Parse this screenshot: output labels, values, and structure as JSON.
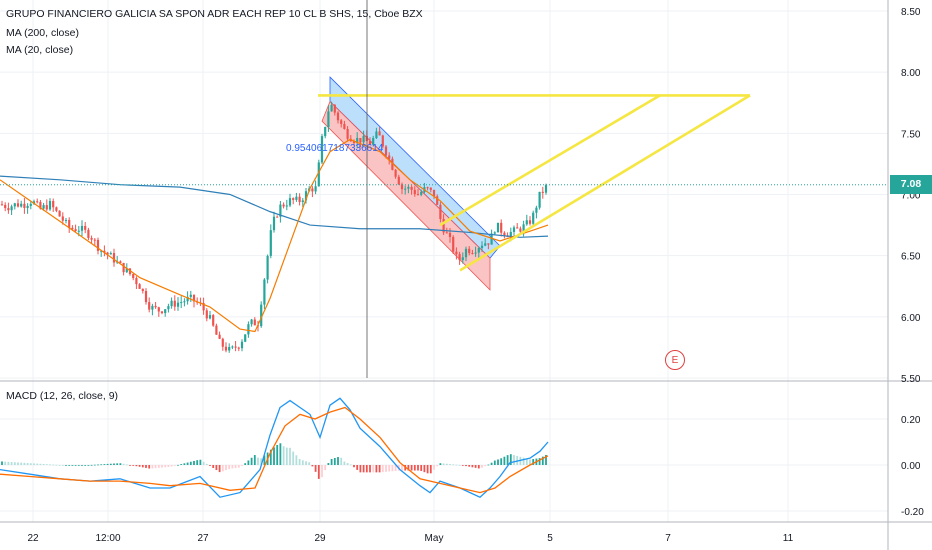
{
  "legend": {
    "title": "GRUPO FINANCIERO GALICIA SA SPON ADR EACH REP 10 CL B SHS, 15, Cboe BZX",
    "ma200": "MA (200, close)",
    "ma20": "MA (20, close)",
    "macd": "MACD (12, 26, close, 9)"
  },
  "last_price_label": "7.08",
  "earnings_marker": "E",
  "channel_label": "0.9540617187336614",
  "colors": {
    "up": "#26a69a",
    "down": "#ef5350",
    "ma200": "#2f7fb8",
    "ma20": "#f57c00",
    "macd_line": "#2196f3",
    "signal_line": "#ff6d00",
    "channel_upper_fill": "#90caf9",
    "channel_lower_fill": "#f8a5a5",
    "pattern": "#f5e642",
    "grid": "#eef1f5"
  },
  "chart_data": [
    {
      "type": "candlestick",
      "title": "GRUPO FINANCIERO GALICIA SA SPON ADR EACH REP 10 CL B SHS, 15, Cboe BZX",
      "ylim": [
        5.5,
        8.6
      ],
      "y_ticks": [
        "5.50",
        "6.00",
        "6.50",
        "7.00",
        "7.50",
        "8.00",
        "8.50"
      ],
      "x_ticks": [
        "22",
        "12:00",
        "27",
        "29",
        "May",
        "5",
        "7",
        "11"
      ],
      "last_price": 7.08,
      "price_path": [
        [
          0,
          6.92
        ],
        [
          8,
          6.9
        ],
        [
          16,
          6.92
        ],
        [
          24,
          6.92
        ],
        [
          32,
          6.95
        ],
        [
          40,
          6.88
        ],
        [
          50,
          6.92
        ],
        [
          60,
          6.82
        ],
        [
          70,
          6.72
        ],
        [
          80,
          6.72
        ],
        [
          90,
          6.67
        ],
        [
          100,
          6.55
        ],
        [
          110,
          6.5
        ],
        [
          120,
          6.42
        ],
        [
          130,
          6.35
        ],
        [
          140,
          6.25
        ],
        [
          150,
          6.08
        ],
        [
          160,
          6.05
        ],
        [
          170,
          6.1
        ],
        [
          180,
          6.12
        ],
        [
          190,
          6.15
        ],
        [
          200,
          6.1
        ],
        [
          210,
          5.98
        ],
        [
          220,
          5.78
        ],
        [
          230,
          5.72
        ],
        [
          240,
          5.78
        ],
        [
          250,
          5.95
        ],
        [
          258,
          5.95
        ],
        [
          265,
          6.35
        ],
        [
          272,
          6.75
        ],
        [
          280,
          6.9
        ],
        [
          290,
          6.95
        ],
        [
          300,
          6.95
        ],
        [
          310,
          7.05
        ],
        [
          316,
          7.05
        ],
        [
          322,
          7.45
        ],
        [
          330,
          7.75
        ],
        [
          338,
          7.62
        ],
        [
          346,
          7.5
        ],
        [
          354,
          7.45
        ],
        [
          362,
          7.45
        ],
        [
          370,
          7.42
        ],
        [
          378,
          7.5
        ],
        [
          386,
          7.35
        ],
        [
          394,
          7.2
        ],
        [
          402,
          7.05
        ],
        [
          410,
          7.05
        ],
        [
          418,
          7.0
        ],
        [
          426,
          7.05
        ],
        [
          434,
          7.0
        ],
        [
          442,
          6.75
        ],
        [
          450,
          6.62
        ],
        [
          458,
          6.45
        ],
        [
          466,
          6.55
        ],
        [
          474,
          6.55
        ],
        [
          482,
          6.6
        ],
        [
          490,
          6.62
        ],
        [
          496,
          6.75
        ],
        [
          502,
          6.7
        ],
        [
          508,
          6.68
        ],
        [
          514,
          6.7
        ],
        [
          520,
          6.72
        ],
        [
          526,
          6.75
        ],
        [
          532,
          6.8
        ],
        [
          540,
          7.0
        ],
        [
          548,
          7.08
        ]
      ],
      "ma200": [
        [
          0,
          7.15
        ],
        [
          60,
          7.12
        ],
        [
          120,
          7.08
        ],
        [
          180,
          7.06
        ],
        [
          230,
          7.0
        ],
        [
          270,
          6.86
        ],
        [
          310,
          6.75
        ],
        [
          360,
          6.72
        ],
        [
          420,
          6.72
        ],
        [
          470,
          6.69
        ],
        [
          520,
          6.65
        ],
        [
          548,
          6.66
        ]
      ],
      "ma20": [
        [
          0,
          7.12
        ],
        [
          30,
          6.95
        ],
        [
          60,
          6.78
        ],
        [
          100,
          6.55
        ],
        [
          140,
          6.32
        ],
        [
          180,
          6.18
        ],
        [
          210,
          6.08
        ],
        [
          240,
          5.9
        ],
        [
          255,
          5.88
        ],
        [
          270,
          6.15
        ],
        [
          290,
          6.6
        ],
        [
          310,
          7.05
        ],
        [
          330,
          7.35
        ],
        [
          350,
          7.45
        ],
        [
          380,
          7.35
        ],
        [
          410,
          7.12
        ],
        [
          440,
          6.95
        ],
        [
          470,
          6.7
        ],
        [
          500,
          6.62
        ],
        [
          530,
          6.7
        ],
        [
          548,
          6.75
        ]
      ],
      "channel": {
        "upper_start": [
          330,
          7.96
        ],
        "upper_end": [
          500,
          6.58
        ],
        "mid_start": [
          330,
          7.76
        ],
        "mid_end": [
          490,
          6.48
        ],
        "lower_start": [
          322,
          7.6
        ],
        "lower_end": [
          490,
          6.22
        ]
      },
      "pattern_lines": [
        [
          [
            318,
            7.81
          ],
          [
            750,
            7.81
          ]
        ],
        [
          [
            440,
            6.75
          ],
          [
            660,
            7.81
          ]
        ],
        [
          [
            460,
            6.38
          ],
          [
            750,
            7.81
          ]
        ]
      ]
    },
    {
      "type": "line",
      "title": "MACD (12, 26, close, 9)",
      "ylim": [
        -0.25,
        0.35
      ],
      "y_ticks": [
        "-0.20",
        "0.00",
        "0.20"
      ],
      "series": [
        {
          "values": [
            [
              0,
              -0.02
            ],
            [
              30,
              -0.04
            ],
            [
              60,
              -0.06
            ],
            [
              90,
              -0.07
            ],
            [
              120,
              -0.06
            ],
            [
              150,
              -0.1
            ],
            [
              170,
              -0.1
            ],
            [
              200,
              -0.05
            ],
            [
              220,
              -0.14
            ],
            [
              240,
              -0.12
            ],
            [
              260,
              -0.02
            ],
            [
              270,
              0.13
            ],
            [
              280,
              0.25
            ],
            [
              290,
              0.28
            ],
            [
              300,
              0.25
            ],
            [
              310,
              0.22
            ],
            [
              320,
              0.12
            ],
            [
              330,
              0.26
            ],
            [
              340,
              0.29
            ],
            [
              350,
              0.24
            ],
            [
              360,
              0.16
            ],
            [
              380,
              0.08
            ],
            [
              400,
              -0.02
            ],
            [
              420,
              -0.09
            ],
            [
              430,
              -0.12
            ],
            [
              440,
              -0.07
            ],
            [
              460,
              -0.1
            ],
            [
              470,
              -0.12
            ],
            [
              480,
              -0.14
            ],
            [
              490,
              -0.1
            ],
            [
              500,
              -0.05
            ],
            [
              510,
              0.01
            ],
            [
              530,
              0.03
            ],
            [
              540,
              0.06
            ],
            [
              548,
              0.1
            ]
          ]
        },
        {
          "values": [
            [
              0,
              -0.04
            ],
            [
              30,
              -0.05
            ],
            [
              60,
              -0.06
            ],
            [
              90,
              -0.07
            ],
            [
              120,
              -0.07
            ],
            [
              150,
              -0.08
            ],
            [
              170,
              -0.09
            ],
            [
              200,
              -0.08
            ],
            [
              230,
              -0.11
            ],
            [
              255,
              -0.1
            ],
            [
              270,
              0.05
            ],
            [
              285,
              0.17
            ],
            [
              300,
              0.22
            ],
            [
              315,
              0.2
            ],
            [
              330,
              0.23
            ],
            [
              345,
              0.25
            ],
            [
              360,
              0.2
            ],
            [
              380,
              0.12
            ],
            [
              400,
              0.01
            ],
            [
              420,
              -0.06
            ],
            [
              440,
              -0.08
            ],
            [
              460,
              -0.1
            ],
            [
              480,
              -0.12
            ],
            [
              495,
              -0.1
            ],
            [
              510,
              -0.05
            ],
            [
              530,
              0.0
            ],
            [
              548,
              0.04
            ]
          ]
        }
      ]
    }
  ]
}
